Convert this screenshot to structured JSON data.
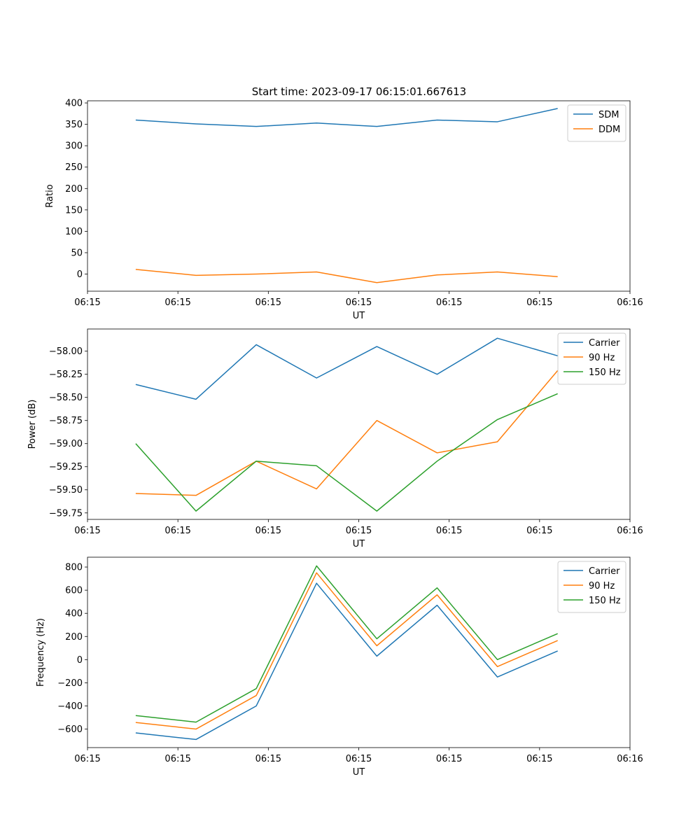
{
  "figure_title": "Start time: 2023-09-17 06:15:01.667613",
  "colors": {
    "c0": "#1f77b4",
    "c1": "#ff7f0e",
    "c2": "#2ca02c"
  },
  "chart_data": [
    {
      "type": "line",
      "xlabel": "UT",
      "ylabel": "Ratio",
      "x": [
        1,
        2,
        3,
        4,
        5,
        6,
        7,
        8
      ],
      "xlim": [
        0.2,
        9.2
      ],
      "xticks": [
        0.2,
        1.7,
        3.2,
        4.7,
        6.2,
        7.7,
        9.2
      ],
      "xtick_labels": [
        "06:15",
        "06:15",
        "06:15",
        "06:15",
        "06:15",
        "06:15",
        "06:16"
      ],
      "ylim": [
        -40,
        405
      ],
      "yticks": [
        0,
        50,
        100,
        150,
        200,
        250,
        300,
        350,
        400
      ],
      "ytick_labels": [
        "0",
        "50",
        "100",
        "150",
        "200",
        "250",
        "300",
        "350",
        "400"
      ],
      "legend": "top-right",
      "series": [
        {
          "name": "SDM",
          "color": "#1f77b4",
          "values": [
            360,
            351,
            345,
            353,
            345,
            360,
            356,
            387
          ]
        },
        {
          "name": "DDM",
          "color": "#ff7f0e",
          "values": [
            11,
            -3,
            0,
            5,
            -20,
            -2,
            5,
            -6
          ]
        }
      ]
    },
    {
      "type": "line",
      "xlabel": "UT",
      "ylabel": "Power (dB)",
      "x": [
        1,
        2,
        3,
        4,
        5,
        6,
        7,
        8
      ],
      "xlim": [
        0.2,
        9.2
      ],
      "xticks": [
        0.2,
        1.7,
        3.2,
        4.7,
        6.2,
        7.7,
        9.2
      ],
      "xtick_labels": [
        "06:15",
        "06:15",
        "06:15",
        "06:15",
        "06:15",
        "06:15",
        "06:16"
      ],
      "ylim": [
        -59.82,
        -57.76
      ],
      "yticks": [
        -59.75,
        -59.5,
        -59.25,
        -59.0,
        -58.75,
        -58.5,
        -58.25,
        -58.0
      ],
      "ytick_labels": [
        "−59.75",
        "−59.50",
        "−59.25",
        "−59.00",
        "−58.75",
        "−58.50",
        "−58.25",
        "−58.00"
      ],
      "legend": "top-right",
      "series": [
        {
          "name": "Carrier",
          "color": "#1f77b4",
          "values": [
            -58.36,
            -58.52,
            -57.93,
            -58.29,
            -57.95,
            -58.25,
            -57.86,
            -58.05
          ]
        },
        {
          "name": "90 Hz",
          "color": "#ff7f0e",
          "values": [
            -59.54,
            -59.56,
            -59.19,
            -59.49,
            -58.75,
            -59.1,
            -58.98,
            -58.21
          ]
        },
        {
          "name": "150 Hz",
          "color": "#2ca02c",
          "values": [
            -59.0,
            -59.73,
            -59.19,
            -59.24,
            -59.73,
            -59.19,
            -58.74,
            -58.46
          ]
        }
      ]
    },
    {
      "type": "line",
      "xlabel": "UT",
      "ylabel": "Frequency (Hz)",
      "x": [
        1,
        2,
        3,
        4,
        5,
        6,
        7,
        8
      ],
      "xlim": [
        0.2,
        9.2
      ],
      "xticks": [
        0.2,
        1.7,
        3.2,
        4.7,
        6.2,
        7.7,
        9.2
      ],
      "xtick_labels": [
        "06:15",
        "06:15",
        "06:15",
        "06:15",
        "06:15",
        "06:15",
        "06:16"
      ],
      "ylim": [
        -760,
        885
      ],
      "yticks": [
        -600,
        -400,
        -200,
        0,
        200,
        400,
        600,
        800
      ],
      "ytick_labels": [
        "−600",
        "−400",
        "−200",
        "0",
        "200",
        "400",
        "600",
        "800"
      ],
      "legend": "top-right",
      "series": [
        {
          "name": "Carrier",
          "color": "#1f77b4",
          "values": [
            -633,
            -690,
            -400,
            660,
            30,
            470,
            -150,
            75
          ]
        },
        {
          "name": "90 Hz",
          "color": "#ff7f0e",
          "values": [
            -543,
            -600,
            -310,
            750,
            120,
            560,
            -60,
            165
          ]
        },
        {
          "name": "150 Hz",
          "color": "#2ca02c",
          "values": [
            -483,
            -540,
            -250,
            810,
            180,
            620,
            0,
            225
          ]
        }
      ]
    }
  ]
}
